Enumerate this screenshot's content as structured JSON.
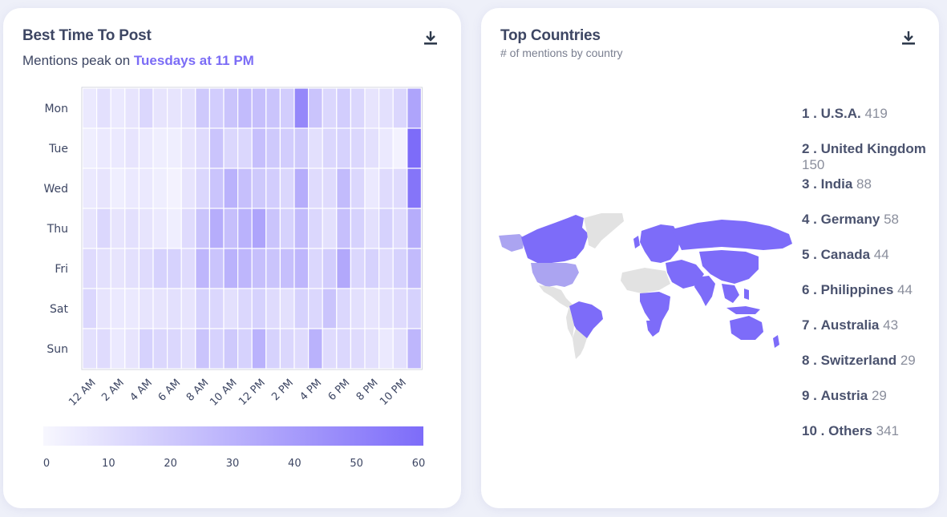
{
  "best_time": {
    "title": "Best Time To Post",
    "subtitle_prefix": "Mentions peak on ",
    "subtitle_highlight": "Tuesdays at 11 PM",
    "download_icon": "download-icon"
  },
  "chart_data": {
    "type": "heatmap",
    "title": "Best Time To Post",
    "days": [
      "Mon",
      "Tue",
      "Wed",
      "Thu",
      "Fri",
      "Sat",
      "Sun"
    ],
    "hour_tick_labels": [
      "12 AM",
      "2 AM",
      "4 AM",
      "6 AM",
      "8 AM",
      "10 AM",
      "12 PM",
      "2 PM",
      "4 PM",
      "6 PM",
      "8 PM",
      "10 PM"
    ],
    "values": [
      [
        6,
        10,
        6,
        8,
        14,
        8,
        8,
        10,
        20,
        18,
        22,
        26,
        24,
        22,
        18,
        48,
        22,
        14,
        18,
        14,
        8,
        10,
        14,
        36
      ],
      [
        4,
        6,
        6,
        8,
        6,
        4,
        4,
        8,
        12,
        22,
        14,
        14,
        24,
        20,
        18,
        20,
        10,
        14,
        16,
        14,
        10,
        6,
        2,
        60
      ],
      [
        6,
        8,
        4,
        6,
        6,
        4,
        2,
        8,
        14,
        22,
        30,
        24,
        20,
        18,
        14,
        32,
        12,
        12,
        26,
        14,
        6,
        12,
        12,
        56
      ],
      [
        8,
        14,
        8,
        10,
        8,
        6,
        4,
        12,
        22,
        32,
        24,
        30,
        36,
        22,
        16,
        26,
        14,
        10,
        24,
        16,
        10,
        16,
        12,
        32
      ],
      [
        12,
        10,
        8,
        10,
        12,
        16,
        16,
        12,
        28,
        22,
        30,
        28,
        24,
        22,
        24,
        28,
        14,
        18,
        34,
        14,
        16,
        12,
        16,
        26
      ],
      [
        14,
        8,
        6,
        6,
        8,
        8,
        10,
        8,
        16,
        14,
        10,
        14,
        16,
        12,
        10,
        16,
        14,
        22,
        14,
        10,
        8,
        10,
        12,
        16
      ],
      [
        10,
        12,
        6,
        8,
        16,
        14,
        14,
        10,
        22,
        16,
        20,
        16,
        30,
        16,
        14,
        12,
        30,
        12,
        14,
        12,
        10,
        6,
        10,
        28
      ]
    ],
    "colorscale": {
      "min": 0,
      "max": 60,
      "low_color": "#f7f7fe",
      "high_color": "#7d6cf9"
    },
    "colorbar_ticks": [
      0,
      10,
      20,
      30,
      40,
      50,
      60
    ]
  },
  "top_countries": {
    "title": "Top Countries",
    "caption": "# of mentions by country",
    "download_icon": "download-icon",
    "map_colors": {
      "high": "#7d6cf9",
      "mid": "#aba4f1",
      "none": "#e2e2e2"
    },
    "items": [
      {
        "rank": "1 .",
        "name": "U.S.A.",
        "value": "419"
      },
      {
        "rank": "2 .",
        "name": "United Kingdom",
        "value": "150"
      },
      {
        "rank": "3 .",
        "name": "India",
        "value": "88"
      },
      {
        "rank": "4 .",
        "name": "Germany",
        "value": "58"
      },
      {
        "rank": "5 .",
        "name": "Canada",
        "value": "44"
      },
      {
        "rank": "6 .",
        "name": "Philippines",
        "value": "44"
      },
      {
        "rank": "7 .",
        "name": "Australia",
        "value": "43"
      },
      {
        "rank": "8 .",
        "name": "Switzerland",
        "value": "29"
      },
      {
        "rank": "9 .",
        "name": "Austria",
        "value": "29"
      },
      {
        "rank": "10 .",
        "name": "Others",
        "value": "341"
      }
    ]
  }
}
